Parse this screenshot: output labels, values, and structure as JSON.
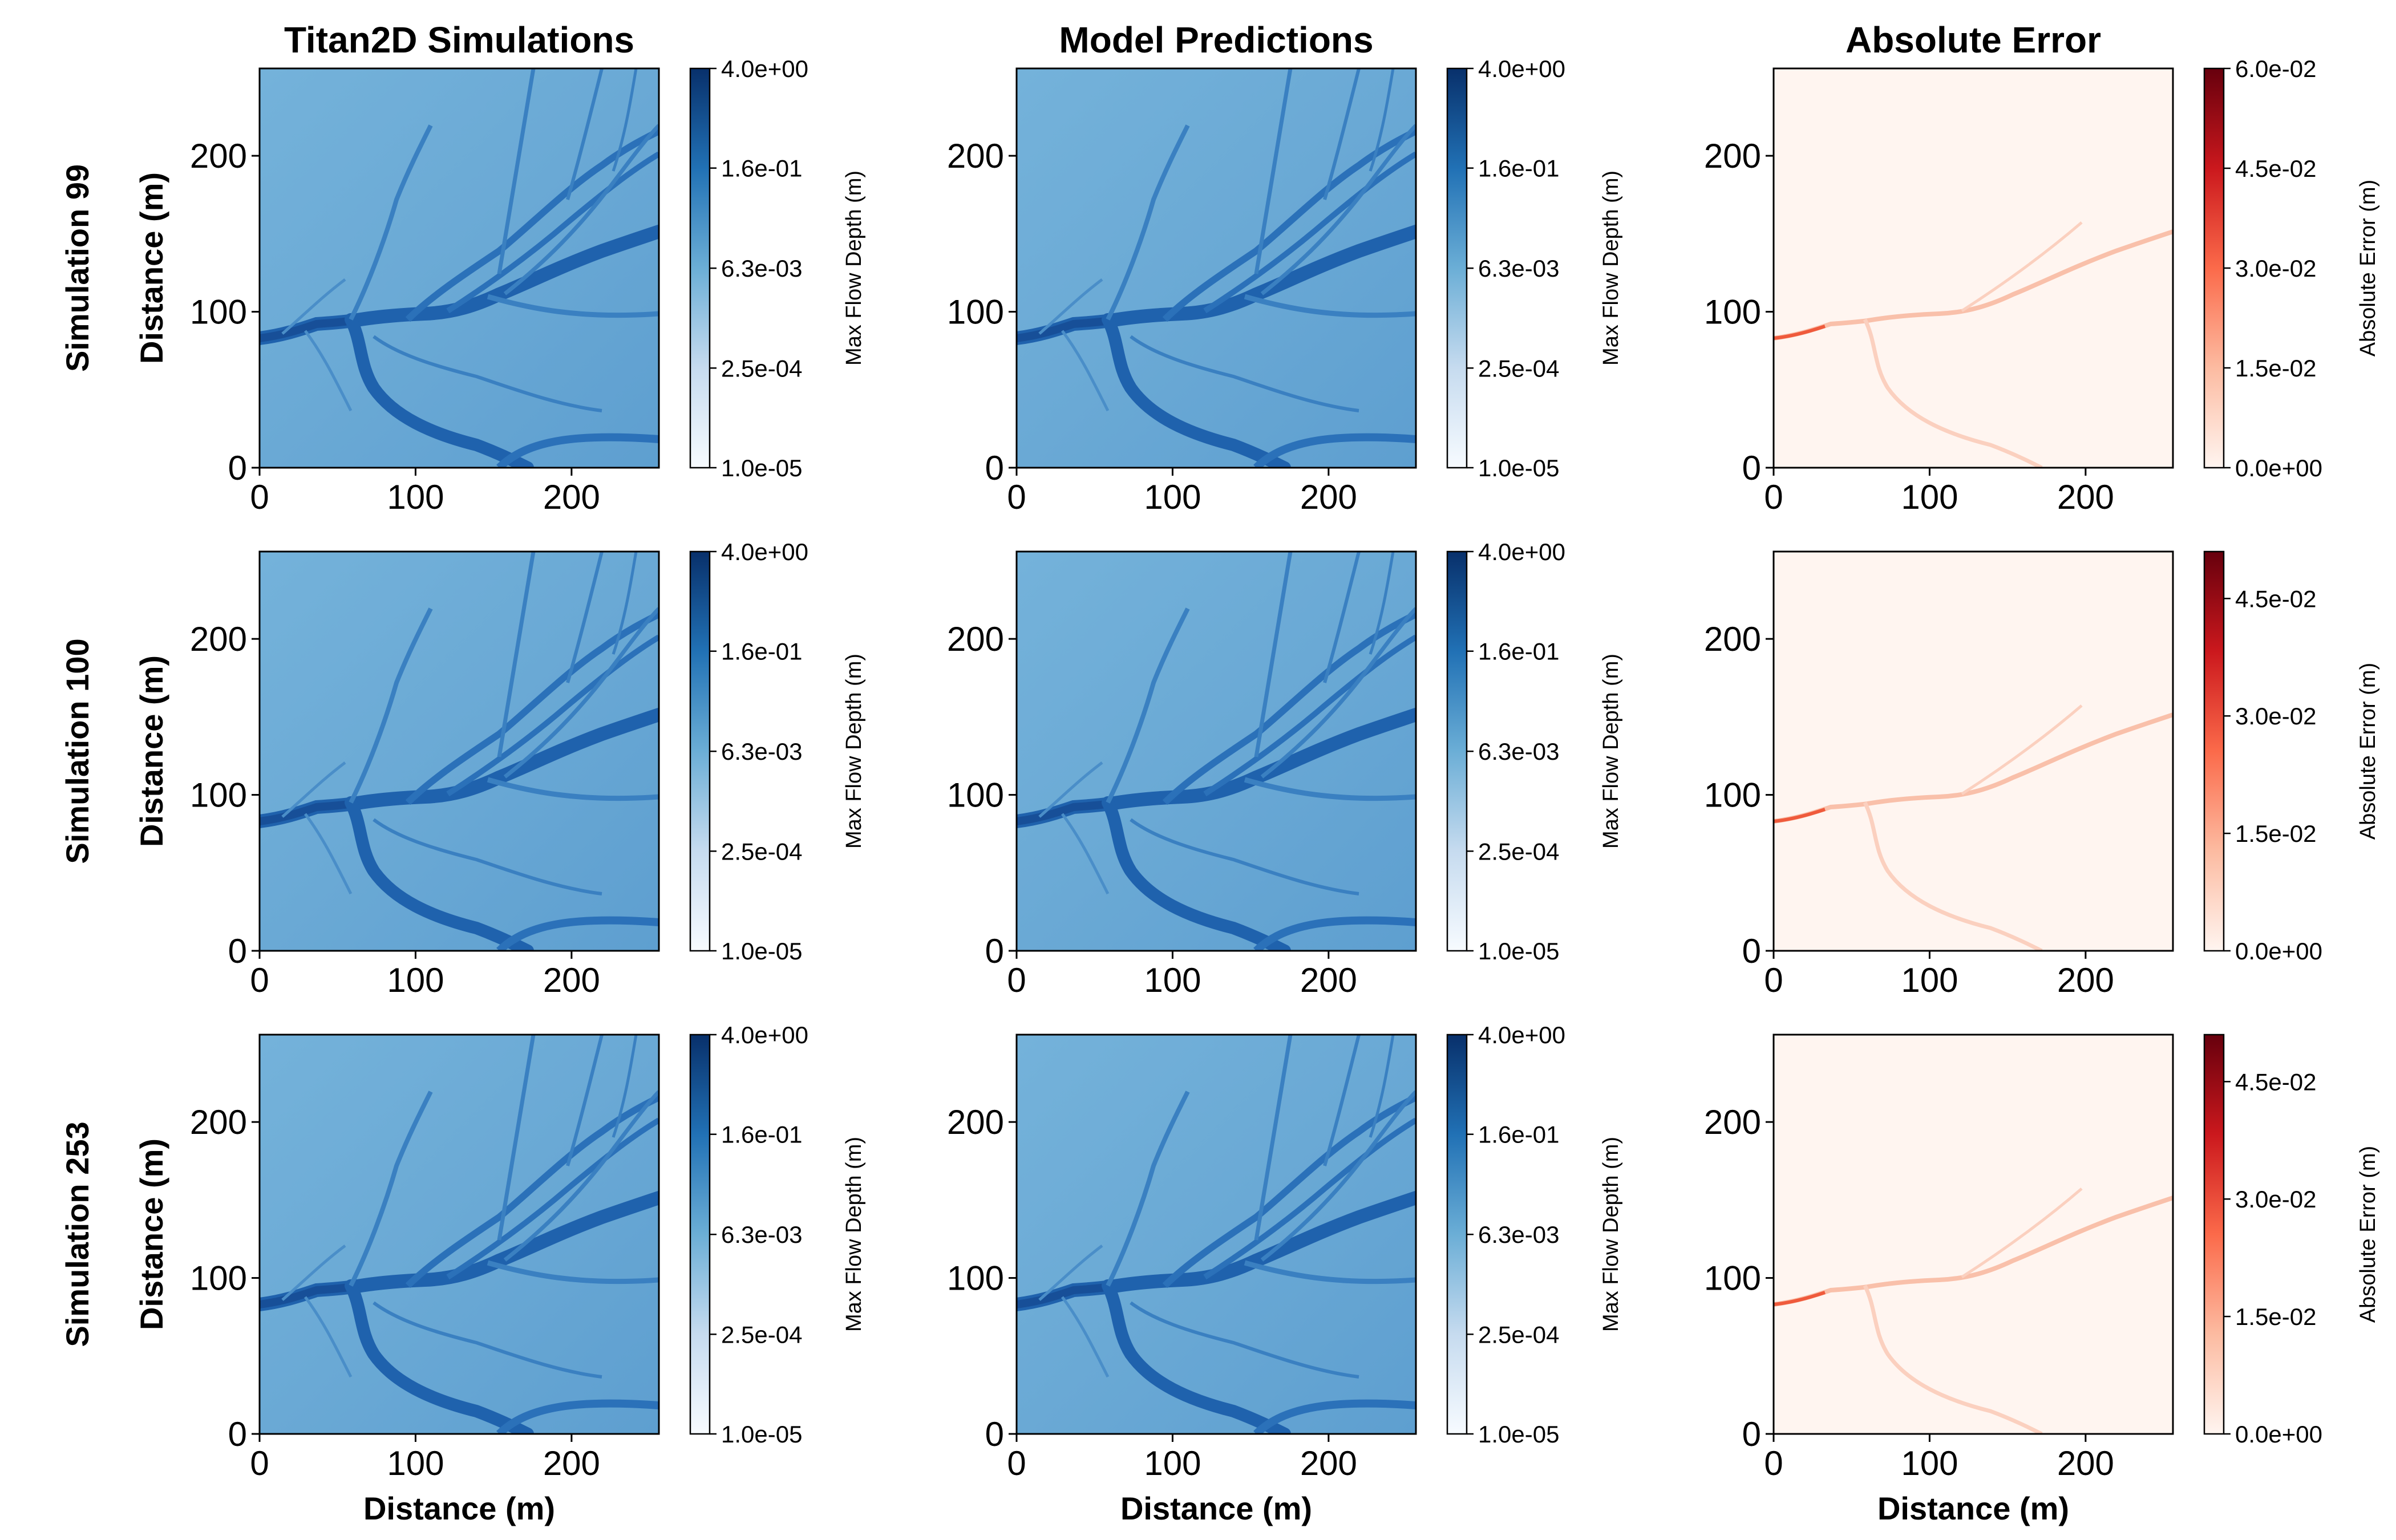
{
  "columns": [
    {
      "title": "Titan2D Simulations",
      "colormap": "blues"
    },
    {
      "title": "Model Predictions",
      "colormap": "blues"
    },
    {
      "title": "Absolute Error",
      "colormap": "reds"
    }
  ],
  "rows": [
    {
      "label": "Simulation 99"
    },
    {
      "label": "Simulation 100"
    },
    {
      "label": "Simulation 253"
    }
  ],
  "axis": {
    "xlabel": "Distance (m)",
    "ylabel": "Distance (m)",
    "xticks": [
      "0",
      "100",
      "200"
    ],
    "yticks": [
      "0",
      "100",
      "200"
    ],
    "range": [
      0,
      256
    ]
  },
  "colors": {
    "blue_low": "#f7fbff",
    "blue_base": "#6aaed6",
    "blue_high": "#08306b",
    "red_low": "#fff5f0",
    "red_high": "#67000d"
  },
  "chart_data": [
    {
      "type": "heatmap",
      "row": "Simulation 99",
      "column": "Titan2D Simulations",
      "colorbar_label": "Max Flow Depth (m)",
      "scale": "log",
      "colorbar_ticks": [
        "4.0e+00",
        "1.6e-01",
        "6.3e-03",
        "2.5e-04",
        "1.0e-05"
      ],
      "vmin": 1e-05,
      "vmax": 4.0
    },
    {
      "type": "heatmap",
      "row": "Simulation 99",
      "column": "Model Predictions",
      "colorbar_label": "Max Flow Depth (m)",
      "scale": "log",
      "colorbar_ticks": [
        "4.0e+00",
        "1.6e-01",
        "6.3e-03",
        "2.5e-04",
        "1.0e-05"
      ],
      "vmin": 1e-05,
      "vmax": 4.0
    },
    {
      "type": "heatmap",
      "row": "Simulation 99",
      "column": "Absolute Error",
      "colorbar_label": "Absolute Error (m)",
      "scale": "linear",
      "colorbar_ticks": [
        "6.0e-02",
        "4.5e-02",
        "3.0e-02",
        "1.5e-02",
        "0.0e+00"
      ],
      "vmin": 0.0,
      "vmax": 0.06
    },
    {
      "type": "heatmap",
      "row": "Simulation 100",
      "column": "Titan2D Simulations",
      "colorbar_label": "Max Flow Depth (m)",
      "scale": "log",
      "colorbar_ticks": [
        "4.0e+00",
        "1.6e-01",
        "6.3e-03",
        "2.5e-04",
        "1.0e-05"
      ],
      "vmin": 1e-05,
      "vmax": 4.0
    },
    {
      "type": "heatmap",
      "row": "Simulation 100",
      "column": "Model Predictions",
      "colorbar_label": "Max Flow Depth (m)",
      "scale": "log",
      "colorbar_ticks": [
        "4.0e+00",
        "1.6e-01",
        "6.3e-03",
        "2.5e-04",
        "1.0e-05"
      ],
      "vmin": 1e-05,
      "vmax": 4.0
    },
    {
      "type": "heatmap",
      "row": "Simulation 100",
      "column": "Absolute Error",
      "colorbar_label": "Absolute Error (m)",
      "scale": "linear",
      "colorbar_ticks": [
        "4.5e-02",
        "3.0e-02",
        "1.5e-02",
        "0.0e+00"
      ],
      "vmin": 0.0,
      "vmax": 0.051
    },
    {
      "type": "heatmap",
      "row": "Simulation 253",
      "column": "Titan2D Simulations",
      "colorbar_label": "Max Flow Depth (m)",
      "scale": "log",
      "colorbar_ticks": [
        "4.0e+00",
        "1.6e-01",
        "6.3e-03",
        "2.5e-04",
        "1.0e-05"
      ],
      "vmin": 1e-05,
      "vmax": 4.0
    },
    {
      "type": "heatmap",
      "row": "Simulation 253",
      "column": "Model Predictions",
      "colorbar_label": "Max Flow Depth (m)",
      "scale": "log",
      "colorbar_ticks": [
        "4.0e+00",
        "1.6e-01",
        "6.3e-03",
        "2.5e-04",
        "1.0e-05"
      ],
      "vmin": 1e-05,
      "vmax": 4.0
    },
    {
      "type": "heatmap",
      "row": "Simulation 253",
      "column": "Absolute Error",
      "colorbar_label": "Absolute Error (m)",
      "scale": "linear",
      "colorbar_ticks": [
        "4.5e-02",
        "3.0e-02",
        "1.5e-02",
        "0.0e+00"
      ],
      "vmin": 0.0,
      "vmax": 0.051
    }
  ]
}
